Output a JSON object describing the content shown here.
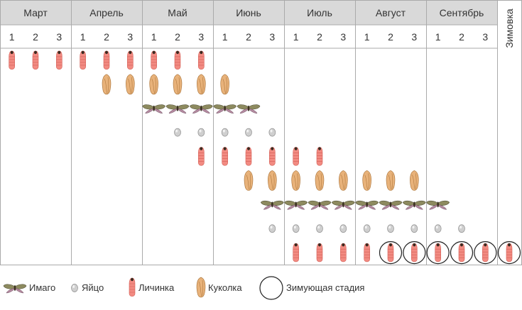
{
  "months": [
    "Март",
    "Апрель",
    "Май",
    "Июнь",
    "Июль",
    "Август",
    "Сентябрь"
  ],
  "decades": [
    "1",
    "2",
    "3"
  ],
  "wintering_label": "Зимовка",
  "legend": {
    "imago": "Имаго",
    "egg": "Яйцо",
    "larva": "Личинка",
    "pupa": "Куколка",
    "wintering_stage": "Зимующая стадия"
  },
  "colors": {
    "header_bg": "#d9d9d9",
    "grid_line": "#aaaaaa",
    "larva": "#f28b82",
    "pupa": "#e8b27a",
    "egg": "#bdbdbd",
    "imago_wing": "#7a8a5a"
  },
  "rows": [
    {
      "stage": "larva",
      "cols": [
        0,
        1,
        2,
        3,
        4,
        5,
        6,
        7,
        8
      ]
    },
    {
      "stage": "pupa",
      "cols": [
        4,
        5,
        6,
        7,
        8,
        9
      ]
    },
    {
      "stage": "imago",
      "cols": [
        6,
        7,
        8,
        9,
        10
      ]
    },
    {
      "stage": "egg",
      "cols": [
        7,
        8,
        9,
        10,
        11
      ]
    },
    {
      "stage": "larva",
      "cols": [
        8,
        9,
        10,
        11,
        12,
        13
      ]
    },
    {
      "stage": "pupa",
      "cols": [
        10,
        11,
        12,
        13,
        14,
        15,
        16,
        17
      ]
    },
    {
      "stage": "imago",
      "cols": [
        11,
        12,
        13,
        14,
        15,
        16,
        17,
        18
      ]
    },
    {
      "stage": "egg",
      "cols": [
        11,
        12,
        13,
        14,
        15,
        16,
        17,
        18,
        19
      ]
    },
    {
      "stage": "larva",
      "cols": [
        12,
        13,
        14,
        15,
        16,
        17,
        18,
        19,
        20,
        21
      ],
      "wintering_cols": [
        16,
        17,
        18,
        19,
        20,
        21
      ]
    }
  ]
}
